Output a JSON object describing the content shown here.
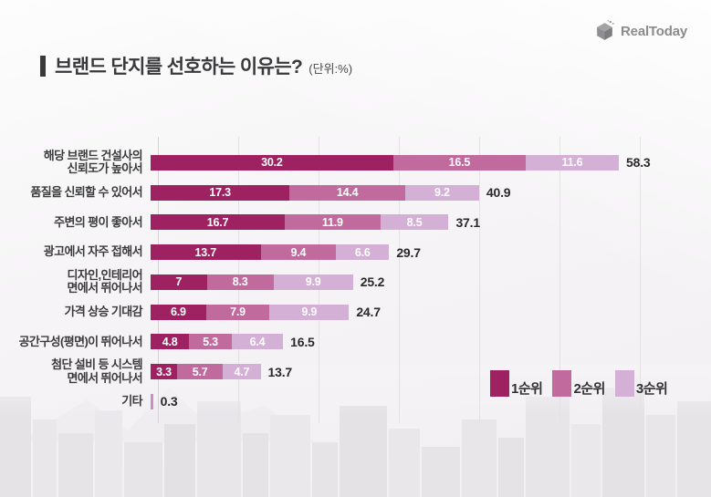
{
  "header": {
    "logo_text": "RealToday"
  },
  "title": {
    "text": "브랜드 단지를 선호하는 이유는?",
    "unit_note": "(단위:%)"
  },
  "chart_data": {
    "type": "bar",
    "orientation": "horizontal_stacked",
    "unit": "%",
    "title": "브랜드 단지를 선호하는 이유는?",
    "series": [
      "1순위",
      "2순위",
      "3순위"
    ],
    "series_colors": [
      "#9e2161",
      "#c16a9d",
      "#d4afd6"
    ],
    "rows": [
      {
        "label": "해당 브랜드 건설사의\n신뢰도가 높아서",
        "values": [
          30.2,
          16.5,
          11.6
        ],
        "total": 58.3
      },
      {
        "label": "품질을 신뢰할 수 있어서",
        "values": [
          17.3,
          14.4,
          9.2
        ],
        "total": 40.9
      },
      {
        "label": "주변의 평이 좋아서",
        "values": [
          16.7,
          11.9,
          8.5
        ],
        "total": 37.1
      },
      {
        "label": "광고에서 자주 접해서",
        "values": [
          13.7,
          9.4,
          6.6
        ],
        "total": 29.7
      },
      {
        "label": "디자인,인테리어\n면에서 뛰어나서",
        "values": [
          7,
          8.3,
          9.9
        ],
        "total": 25.2
      },
      {
        "label": "가격 상승 기대감",
        "values": [
          6.9,
          7.9,
          9.9
        ],
        "total": 24.7
      },
      {
        "label": "공간구성(평면)이 뛰어나서",
        "values": [
          4.8,
          5.3,
          6.4
        ],
        "total": 16.5
      },
      {
        "label": "첨단 설비 등 시스템\n면에서 뛰어나서",
        "values": [
          3.3,
          5.7,
          4.7
        ],
        "total": 13.7
      },
      {
        "label": "기타",
        "values": [
          0.3
        ],
        "total": 0.3,
        "segment_colors": [
          "#c98fc0"
        ]
      }
    ],
    "xlim": [
      0,
      68
    ],
    "gridline_step_percent": 10,
    "grid": true,
    "legend": [
      "1순위",
      "2순위",
      "3순위"
    ],
    "legend_position": "bottom-right",
    "value_label_color_inside": "#ffffff",
    "total_label_color": "#29292b"
  }
}
